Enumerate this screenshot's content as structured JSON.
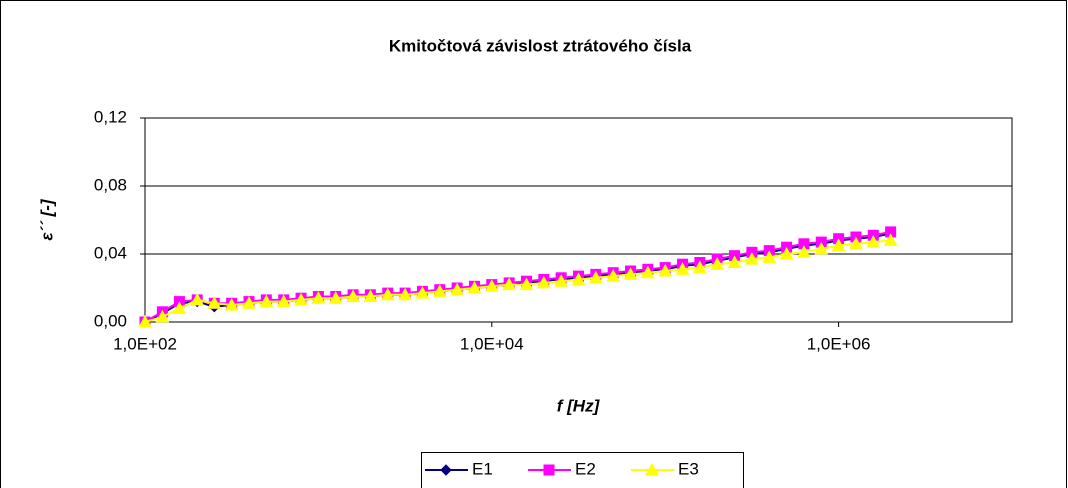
{
  "chart_data": {
    "type": "line",
    "title": "Kmitočtová závislost ztrátového čísla",
    "x_label": "f [Hz]",
    "y_label": "ε´´ [-]",
    "x_log": true,
    "grid": true,
    "legend": "bottom",
    "xlim": [
      100,
      10000000
    ],
    "xticks": [
      {
        "value": 100,
        "label": "1,0E+02"
      },
      {
        "value": 10000,
        "label": "1,0E+04"
      },
      {
        "value": 1000000,
        "label": "1,0E+06"
      }
    ],
    "ylim": [
      0,
      0.12
    ],
    "yticks": [
      {
        "value": 0,
        "label": "0,00"
      },
      {
        "value": 0.04,
        "label": "0,04"
      },
      {
        "value": 0.08,
        "label": "0,08"
      },
      {
        "value": 0.12,
        "label": "0,12"
      }
    ],
    "x": [
      100,
      126,
      158,
      200,
      251,
      316,
      398,
      501,
      631,
      794,
      1000,
      1259,
      1585,
      1995,
      2512,
      3162,
      3981,
      5012,
      6310,
      7943,
      10000,
      12589,
      15849,
      19953,
      25119,
      31623,
      39811,
      50119,
      63096,
      79433,
      100000,
      125893,
      158489,
      199526,
      251189,
      316228,
      398107,
      501187,
      630957,
      794328,
      1000000,
      1258925,
      1584893,
      1995262
    ],
    "series": [
      {
        "name": "E1",
        "color": "#000080",
        "marker": "diamond",
        "values": [
          0.0,
          0.005,
          0.011,
          0.012,
          0.009,
          0.01,
          0.011,
          0.012,
          0.012,
          0.013,
          0.014,
          0.014,
          0.015,
          0.015,
          0.016,
          0.016,
          0.017,
          0.018,
          0.019,
          0.02,
          0.021,
          0.022,
          0.023,
          0.024,
          0.025,
          0.026,
          0.027,
          0.028,
          0.029,
          0.03,
          0.031,
          0.033,
          0.034,
          0.036,
          0.038,
          0.04,
          0.041,
          0.043,
          0.045,
          0.046,
          0.048,
          0.049,
          0.05,
          0.052
        ]
      },
      {
        "name": "E2",
        "color": "#FF00FF",
        "marker": "square",
        "values": [
          0.0,
          0.006,
          0.012,
          0.013,
          0.011,
          0.011,
          0.012,
          0.013,
          0.013,
          0.014,
          0.015,
          0.015,
          0.016,
          0.016,
          0.017,
          0.017,
          0.018,
          0.019,
          0.02,
          0.021,
          0.022,
          0.023,
          0.024,
          0.025,
          0.026,
          0.027,
          0.028,
          0.029,
          0.03,
          0.031,
          0.032,
          0.034,
          0.035,
          0.037,
          0.039,
          0.041,
          0.042,
          0.044,
          0.046,
          0.047,
          0.049,
          0.05,
          0.051,
          0.053
        ]
      },
      {
        "name": "E3",
        "color": "#FFFF00",
        "marker": "triangle",
        "values": [
          0.0,
          0.003,
          0.008,
          0.013,
          0.011,
          0.01,
          0.011,
          0.012,
          0.012,
          0.013,
          0.014,
          0.014,
          0.015,
          0.015,
          0.016,
          0.016,
          0.017,
          0.018,
          0.019,
          0.02,
          0.021,
          0.022,
          0.022,
          0.023,
          0.024,
          0.025,
          0.026,
          0.027,
          0.028,
          0.029,
          0.03,
          0.031,
          0.032,
          0.034,
          0.035,
          0.037,
          0.038,
          0.04,
          0.041,
          0.043,
          0.045,
          0.046,
          0.047,
          0.048
        ]
      }
    ]
  }
}
